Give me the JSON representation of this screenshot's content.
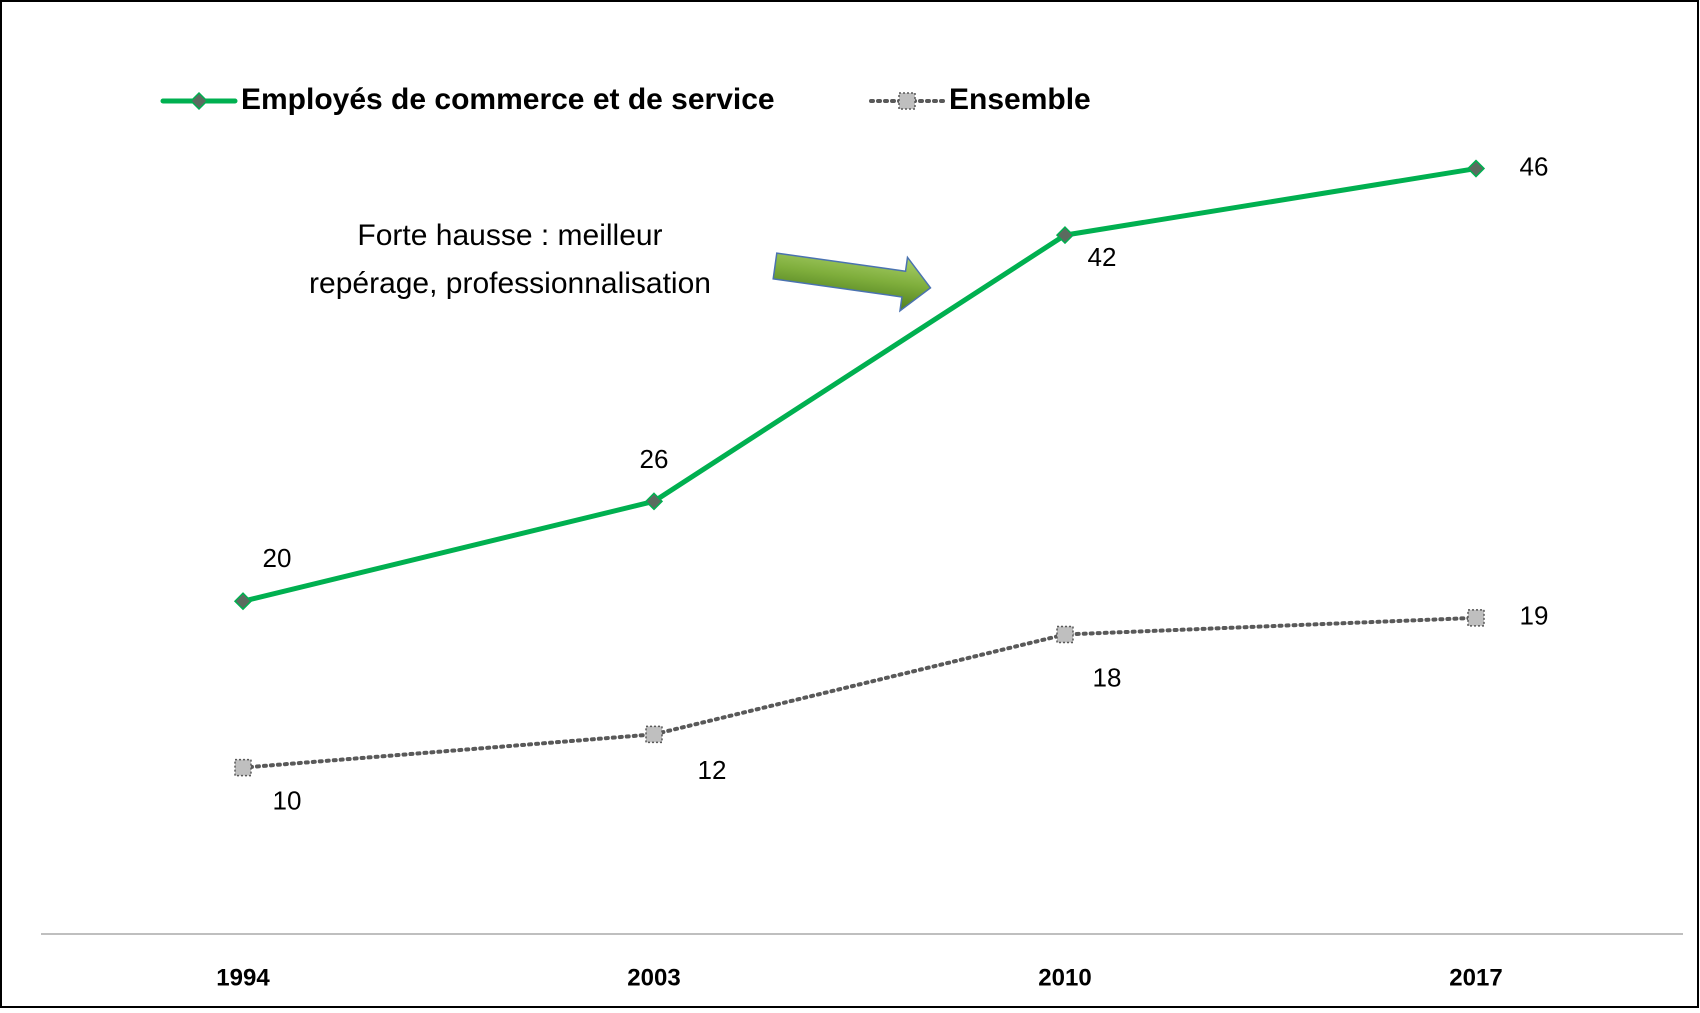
{
  "chart_data": {
    "type": "line",
    "categories": [
      "1994",
      "2003",
      "2010",
      "2017"
    ],
    "series": [
      {
        "name": "Employés de commerce et de service",
        "color": "#00b050",
        "marker_color": "#5b6b5f",
        "marker": "diamond",
        "dash": "solid",
        "values": [
          20,
          26,
          42,
          46
        ]
      },
      {
        "name": "Ensemble",
        "color": "#595959",
        "marker_color": "#bfbfbf",
        "marker": "square",
        "dash": "dotted",
        "values": [
          10,
          12,
          18,
          19
        ]
      }
    ],
    "ylim": [
      0,
      50
    ],
    "annotation": [
      "Forte hausse : meilleur",
      "repérage, professionnalisation"
    ],
    "legend": "top-left"
  }
}
